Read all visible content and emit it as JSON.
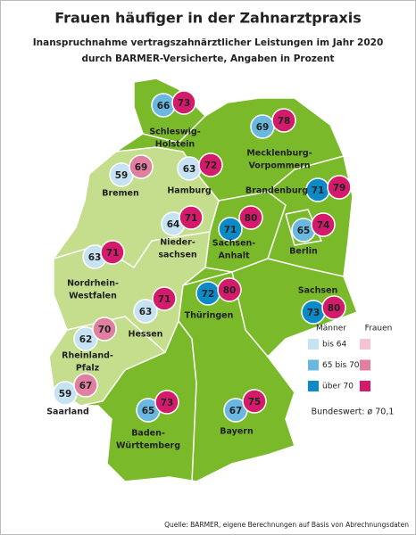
{
  "header": {
    "title": "Frauen häufiger in der Zahnarztpraxis",
    "subtitle": [
      "Inanspruchnahme vertragszahnärztlicher Leistungen im Jahr 2020",
      "durch BARMER-Versicherte, Angaben in Prozent"
    ]
  },
  "states": [
    {
      "label": [
        "Schleswig-",
        "Holstein"
      ],
      "men": 66,
      "women": 73,
      "men_color": "#6ab8e0",
      "women_color": "#d41b6b"
    },
    {
      "label": [
        "Mecklenburg-",
        "Vorpommern"
      ],
      "men": 69,
      "women": 78,
      "men_color": "#6ab8e0",
      "women_color": "#d41b6b"
    },
    {
      "label": [
        "Bremen"
      ],
      "men": 59,
      "women": 69,
      "men_color": "#c5e3f3",
      "women_color": "#e07fa0"
    },
    {
      "label": [
        "Hamburg"
      ],
      "men": 63,
      "women": 72,
      "men_color": "#c5e3f3",
      "women_color": "#d41b6b"
    },
    {
      "label": [
        "Brandenburg"
      ],
      "men": 71,
      "women": 79,
      "men_color": "#0a8ac6",
      "women_color": "#d41b6b"
    },
    {
      "label": [
        "Nieder-",
        "sachsen"
      ],
      "men": 64,
      "women": 71,
      "men_color": "#c5e3f3",
      "women_color": "#d41b6b"
    },
    {
      "label": [
        "Sachsen-",
        "Anhalt"
      ],
      "men": 71,
      "women": 80,
      "men_color": "#0a8ac6",
      "women_color": "#d41b6b"
    },
    {
      "label": [
        "Berlin"
      ],
      "men": 65,
      "women": 74,
      "men_color": "#6ab8e0",
      "women_color": "#d41b6b"
    },
    {
      "label": [
        "Nordrhein-",
        "Westfalen"
      ],
      "men": 63,
      "women": 71,
      "men_color": "#c5e3f3",
      "women_color": "#d41b6b"
    },
    {
      "label": [
        "Hessen"
      ],
      "men": 63,
      "women": 71,
      "men_color": "#c5e3f3",
      "women_color": "#d41b6b"
    },
    {
      "label": [
        "Thüringen"
      ],
      "men": 72,
      "women": 80,
      "men_color": "#0a8ac6",
      "women_color": "#d41b6b"
    },
    {
      "label": [
        "Sachsen"
      ],
      "men": 73,
      "women": 80,
      "men_color": "#0a8ac6",
      "women_color": "#d41b6b"
    },
    {
      "label": [
        "Rheinland-",
        "Pfalz"
      ],
      "men": 62,
      "women": 70,
      "men_color": "#c5e3f3",
      "women_color": "#e07fa0"
    },
    {
      "label": [
        "Saarland"
      ],
      "men": 59,
      "women": 67,
      "men_color": "#c5e3f3",
      "women_color": "#e07fa0"
    },
    {
      "label": [
        "Baden-",
        "Württemberg"
      ],
      "men": 65,
      "women": 73,
      "men_color": "#6ab8e0",
      "women_color": "#d41b6b"
    },
    {
      "label": [
        "Bayern"
      ],
      "men": 67,
      "women": 75,
      "men_color": "#6ab8e0",
      "women_color": "#d41b6b"
    }
  ],
  "legend": {
    "men_label": "Männer",
    "women_label": "Frauen",
    "items": [
      {
        "label": "bis 64",
        "men_color": "#c5e3f3",
        "women_color": "#f4c3d4"
      },
      {
        "label": "65 bis 70",
        "men_color": "#6ab8e0",
        "women_color": "#e07fa0"
      },
      {
        "label": "über 70",
        "men_color": "#0a8ac6",
        "women_color": "#d41b6b"
      }
    ],
    "national": "Bundeswert: ø 70,1"
  },
  "source": "Quelle: BARMER, eigene Berechnungen auf Basis von Abrechnungsdaten"
}
